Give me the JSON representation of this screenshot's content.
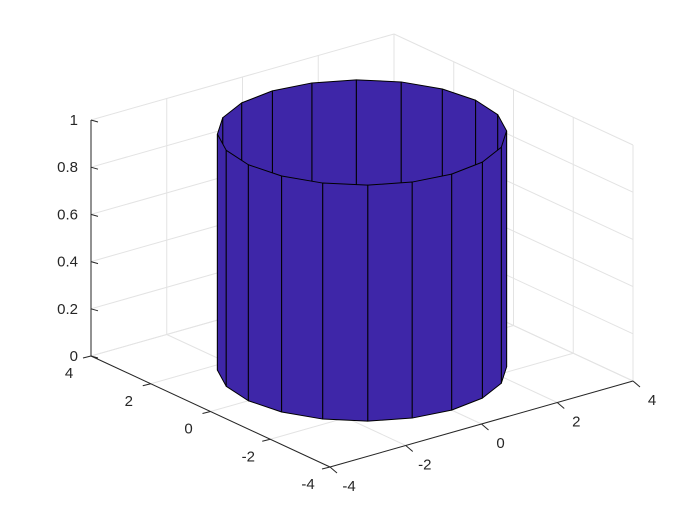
{
  "chart_data": {
    "type": "surface3d",
    "shape": "cylinder",
    "radius": 3,
    "faces": 20,
    "height": [
      0,
      1
    ],
    "face_color": "#3e26a8",
    "edge_color": "#000000",
    "xlim": [
      -4,
      4
    ],
    "ylim": [
      -4,
      4
    ],
    "zlim": [
      0,
      1
    ],
    "xticks": [
      "-4",
      "-2",
      "0",
      "2",
      "4"
    ],
    "yticks": [
      "-4",
      "-2",
      "0",
      "2",
      "4"
    ],
    "zticks": [
      "0",
      "0.2",
      "0.4",
      "0.6",
      "0.8",
      "1"
    ],
    "grid": true,
    "title": "",
    "xlabel": "",
    "ylabel": "",
    "zlabel": ""
  }
}
